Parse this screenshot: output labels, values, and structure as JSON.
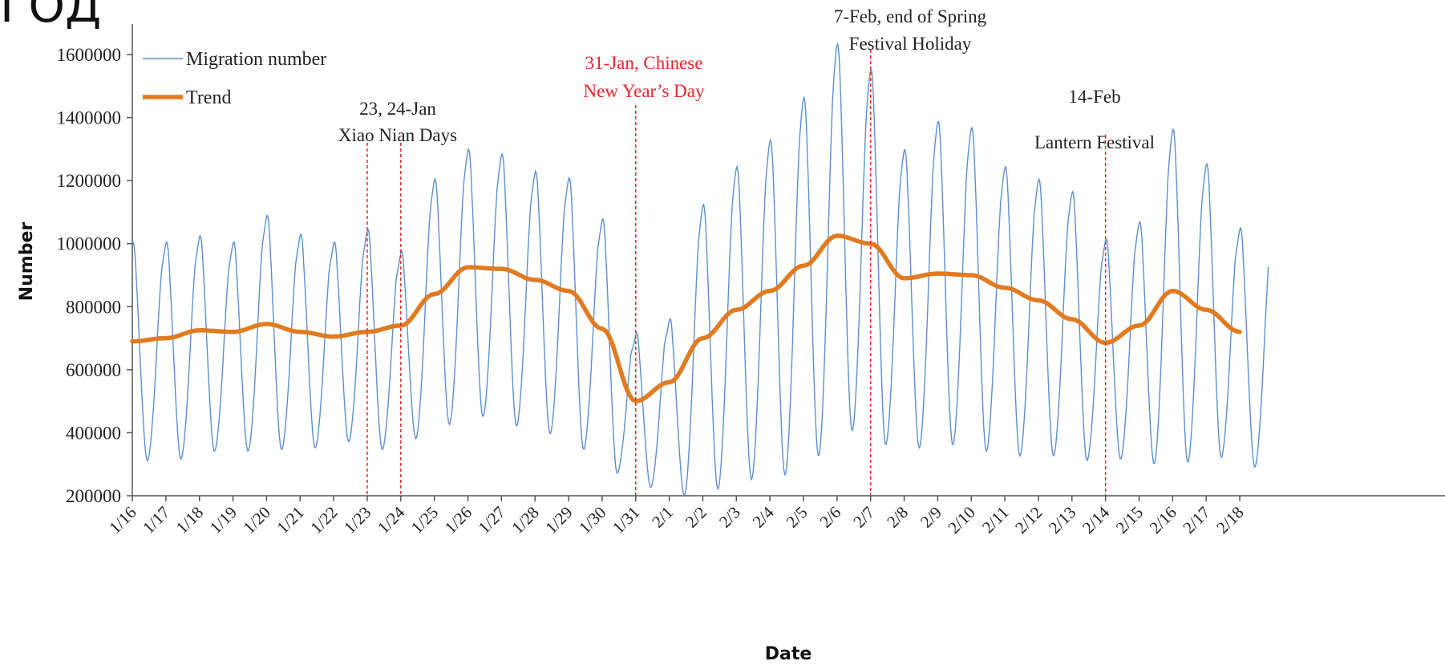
{
  "corner_text": "ГОД",
  "chart_data": {
    "type": "line",
    "xlabel": "Date",
    "ylabel": "Number",
    "ylim": [
      200000,
      1700000
    ],
    "yticks": [
      200000,
      400000,
      600000,
      800000,
      1000000,
      1200000,
      1400000,
      1600000
    ],
    "ytick_labels": [
      "200000",
      "400000",
      "600000",
      "800000",
      "1000000",
      "1200000",
      "1400000",
      "1600000"
    ],
    "x_categories": [
      "1/16",
      "1/17",
      "1/18",
      "1/19",
      "1/20",
      "1/21",
      "1/22",
      "1/23",
      "1/24",
      "1/25",
      "1/26",
      "1/27",
      "1/28",
      "1/29",
      "1/30",
      "1/31",
      "2/1",
      "2/2",
      "2/3",
      "2/4",
      "2/5",
      "2/6",
      "2/7",
      "2/8",
      "2/9",
      "2/10",
      "2/11",
      "2/12",
      "2/13",
      "2/14",
      "2/15",
      "2/16",
      "2/17",
      "2/18"
    ],
    "legend": {
      "position": "top-left"
    },
    "series": [
      {
        "name": "Migration number",
        "color": "#5b8fd0",
        "style": "thin",
        "daily_peaks": [
          1000000,
          1000000,
          1020000,
          1000000,
          1085000,
          1025000,
          1000000,
          1040000,
          970000,
          1200000,
          1295000,
          1280000,
          1225000,
          1205000,
          1075000,
          710000,
          755000,
          1120000,
          1240000,
          1325000,
          1460000,
          1630000,
          1550000,
          1295000,
          1385000,
          1365000,
          1240000,
          1200000,
          1160000,
          1010000,
          1065000,
          1360000,
          1250000,
          1045000
        ],
        "daily_troughs": [
          315000,
          320000,
          345000,
          345000,
          350000,
          355000,
          375000,
          350000,
          385000,
          430000,
          455000,
          425000,
          400000,
          350000,
          275000,
          230000,
          205000,
          225000,
          255000,
          270000,
          330000,
          410000,
          365000,
          355000,
          365000,
          345000,
          330000,
          330000,
          315000,
          320000,
          305000,
          310000,
          325000,
          295000
        ]
      },
      {
        "name": "Trend",
        "color": "#e07b21",
        "style": "thick",
        "values": [
          690000,
          700000,
          725000,
          720000,
          745000,
          720000,
          705000,
          720000,
          740000,
          840000,
          925000,
          920000,
          885000,
          850000,
          730000,
          500000,
          560000,
          700000,
          790000,
          850000,
          930000,
          1025000,
          1000000,
          890000,
          905000,
          900000,
          860000,
          820000,
          760000,
          685000,
          740000,
          850000,
          790000,
          720000
        ]
      }
    ],
    "annotations": [
      {
        "lines": [
          "23, 24-Jan",
          "Xiao Nian Days"
        ],
        "color": "#222222",
        "x_markers": [
          "1/23",
          "1/24"
        ]
      },
      {
        "lines": [
          "31-Jan, Chinese",
          "New Year’s Day"
        ],
        "color": "#e8262d",
        "x_markers": [
          "1/31"
        ]
      },
      {
        "lines": [
          "7-Feb, end of Spring",
          "Festival Holiday"
        ],
        "color": "#222222",
        "x_markers": [
          "2/7"
        ]
      },
      {
        "lines": [
          "14-Feb",
          "Lantern Festival"
        ],
        "color": "#222222",
        "x_markers": [
          "2/14"
        ]
      }
    ]
  }
}
